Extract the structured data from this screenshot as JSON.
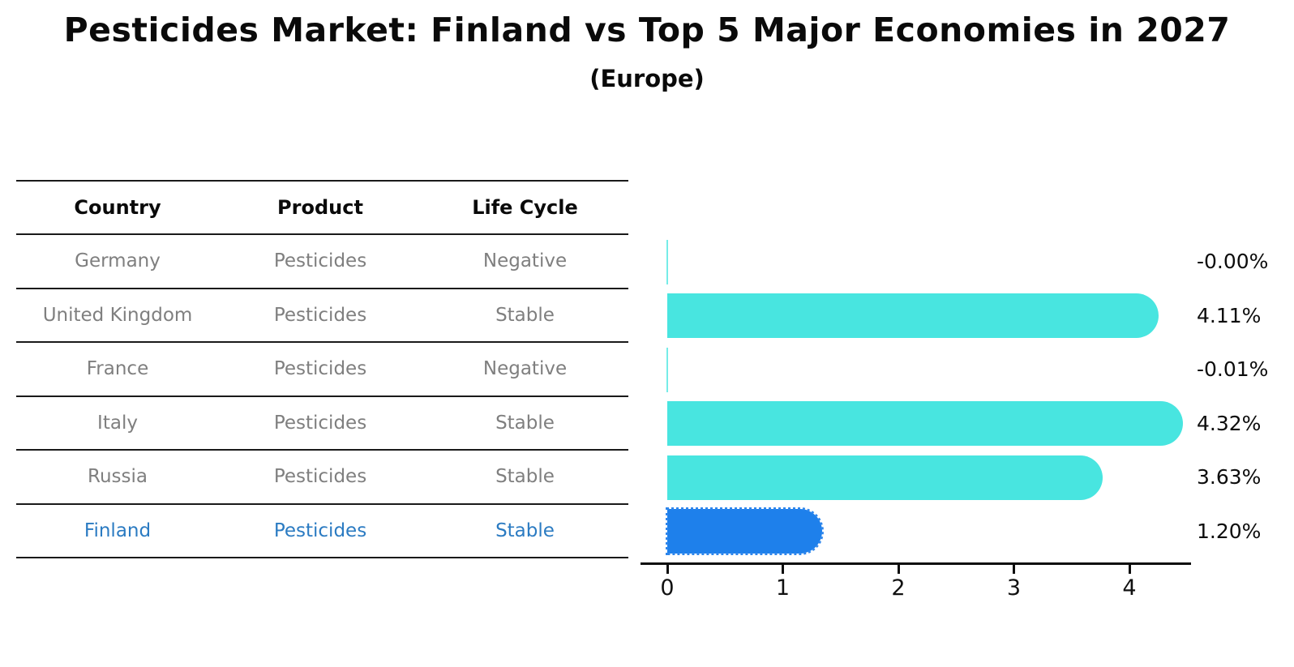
{
  "title": "Pesticides Market: Finland vs Top 5 Major Economies in 2027",
  "subtitle": "(Europe)",
  "table": {
    "headers": [
      "Country",
      "Product",
      "Life Cycle"
    ],
    "rows": [
      {
        "country": "Germany",
        "product": "Pesticides",
        "life_cycle": "Negative",
        "highlight": false
      },
      {
        "country": "United Kingdom",
        "product": "Pesticides",
        "life_cycle": "Stable",
        "highlight": false
      },
      {
        "country": "France",
        "product": "Pesticides",
        "life_cycle": "Negative",
        "highlight": false
      },
      {
        "country": "Italy",
        "product": "Pesticides",
        "life_cycle": "Stable",
        "highlight": false
      },
      {
        "country": "Russia",
        "product": "Pesticides",
        "life_cycle": "Stable",
        "highlight": false
      },
      {
        "country": "Finland",
        "product": "Pesticides",
        "life_cycle": "Stable",
        "highlight": true
      }
    ]
  },
  "chart_data": {
    "type": "bar",
    "orientation": "horizontal",
    "title": "Pesticides Market: Finland vs Top 5 Major Economies in 2027",
    "subtitle": "(Europe)",
    "categories": [
      "Germany",
      "United Kingdom",
      "France",
      "Italy",
      "Russia",
      "Finland"
    ],
    "values": [
      -0.0,
      4.11,
      -0.01,
      4.32,
      3.63,
      1.2
    ],
    "value_labels": [
      "-0.00%",
      "4.11%",
      "-0.01%",
      "4.32%",
      "3.63%",
      "1.20%"
    ],
    "xticks": [
      "0",
      "1",
      "2",
      "3",
      "4"
    ],
    "xlim": [
      -0.2,
      4.55
    ],
    "highlight_index": 5,
    "grid": false,
    "legend": "none"
  },
  "colors": {
    "bar_default": "#48E5E0",
    "bar_highlight": "#1E80EB",
    "bar_highlight_edge": "#2E86EC",
    "highlight_text": "#2B7BC2",
    "row_text": "#7F7F7F",
    "axis_text": "#111111"
  }
}
